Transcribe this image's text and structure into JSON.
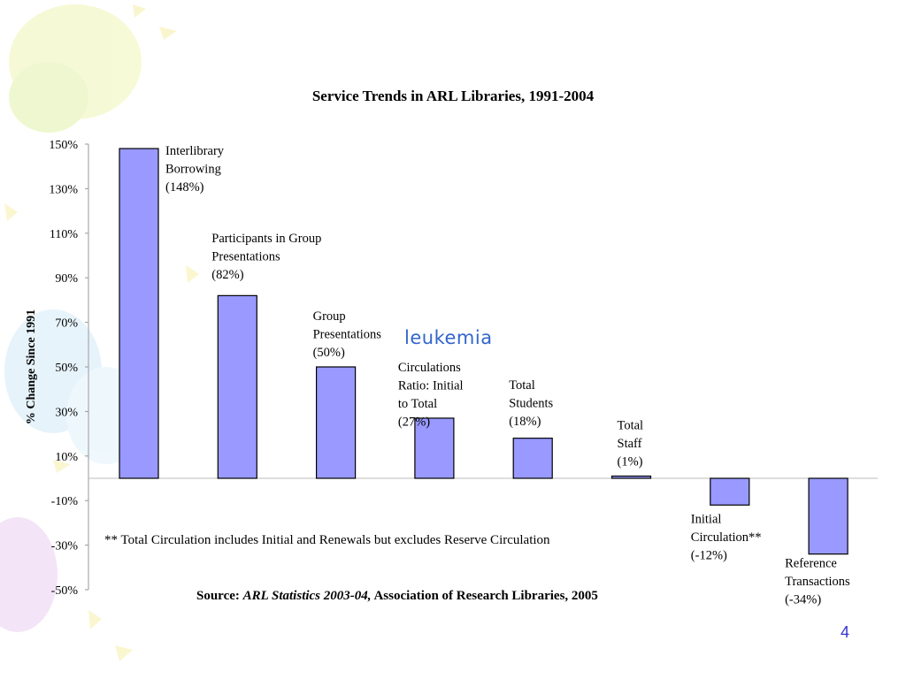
{
  "chart_data": {
    "type": "bar",
    "title": "Service Trends in ARL Libraries, 1991-2004",
    "ylabel": "% Change Since 1991",
    "xlabel": "",
    "ylim": [
      -50,
      150
    ],
    "y_ticks": [
      150,
      130,
      110,
      90,
      70,
      50,
      30,
      10,
      -10,
      -30,
      -50
    ],
    "y_tick_labels": [
      "150%",
      "130%",
      "110%",
      "90%",
      "70%",
      "50%",
      "30%",
      "10%",
      "-10%",
      "-30%",
      "-50%"
    ],
    "categories": [
      "Interlibrary Borrowing",
      "Participants in Group Presentations",
      "Group Presentations",
      "Circulations Ratio: Initial to Total",
      "Total Students",
      "Total Staff",
      "Initial Circulation**",
      "Reference Transactions"
    ],
    "values": [
      148,
      82,
      50,
      27,
      18,
      1,
      -12,
      -34
    ],
    "data_labels": [
      [
        "Interlibrary",
        "Borrowing",
        "(148%)"
      ],
      [
        "Participants in Group",
        "Presentations",
        "(82%)"
      ],
      [
        "Group",
        "Presentations",
        "(50%)"
      ],
      [
        "Circulations",
        "Ratio: Initial",
        "to Total",
        "(27%)"
      ],
      [
        "Total",
        "Students",
        "(18%)"
      ],
      [
        "Total",
        "Staff",
        "(1%)"
      ],
      [
        "Initial",
        "Circulation**",
        "(-12%)"
      ],
      [
        "Reference",
        "Transactions",
        "(-34%)"
      ]
    ],
    "bar_color": "#9999ff",
    "grid": false,
    "legend": "none"
  },
  "footnote": "** Total Circulation includes Initial and Renewals but excludes Reserve Circulation",
  "source": {
    "prefix": "Source: ",
    "publication": "ARL Statistics 2003-04,",
    "suffix": "Association of Research Libraries, 2005"
  },
  "overlay_word": "leukemia",
  "slide_number": "4",
  "colors": {
    "bar_fill": "#9999ff",
    "bar_stroke": "#000000",
    "overlay_text": "#3366cc",
    "slide_number": "#3333cc"
  }
}
